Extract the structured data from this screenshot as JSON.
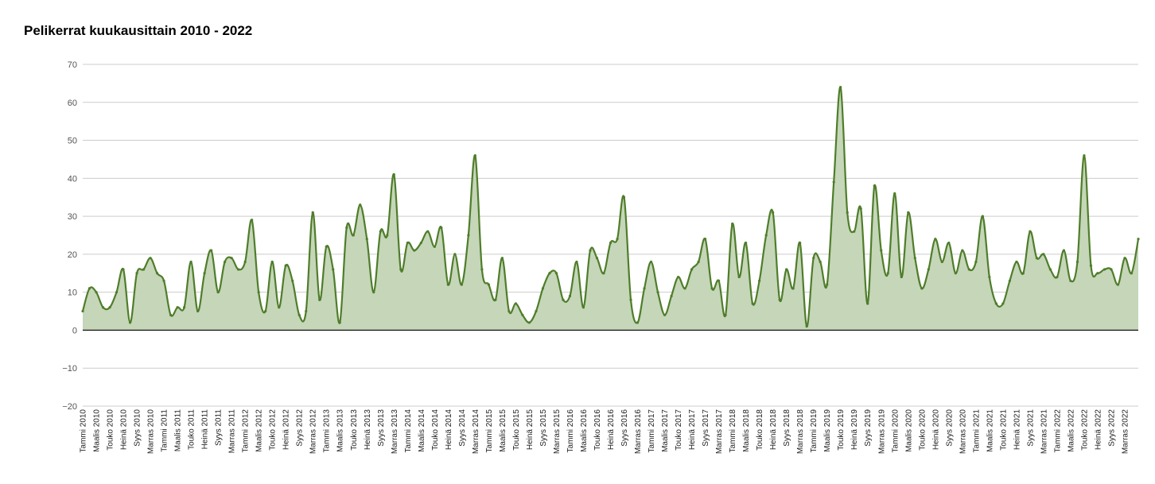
{
  "colors": {
    "line": "#4f7d2a",
    "fill": "#c5d6b9",
    "grid": "#cccccc",
    "zero": "#000000"
  },
  "chart_data": {
    "type": "area",
    "title": "Pelikerrat kuukausittain 2010 - 2022",
    "xlabel": "",
    "ylabel": "",
    "ylim": [
      -20,
      70
    ],
    "yticks": [
      70,
      60,
      50,
      40,
      30,
      20,
      10,
      0,
      -10,
      -20
    ],
    "grid": true,
    "legend": "none",
    "x_tick_labels": [
      "Tammi 2010",
      "Maalis 2010",
      "Touko 2010",
      "Heinä 2010",
      "Syys 2010",
      "Marras 2010",
      "Tammi 2011",
      "Maalis 2011",
      "Touko 2011",
      "Heinä 2011",
      "Syys 2011",
      "Marras 2011",
      "Tammi 2012",
      "Maalis 2012",
      "Touko 2012",
      "Heinä 2012",
      "Syys 2012",
      "Marras 2012",
      "Tammi 2013",
      "Maalis 2013",
      "Touko 2013",
      "Heinä 2013",
      "Syys 2013",
      "Marras 2013",
      "Tammi 2014",
      "Maalis 2014",
      "Touko 2014",
      "Heinä 2014",
      "Syys 2014",
      "Marras 2014",
      "Tammi 2015",
      "Maalis 2015",
      "Touko 2015",
      "Heinä 2015",
      "Syys 2015",
      "Marras 2015",
      "Tammi 2016",
      "Maalis 2016",
      "Touko 2016",
      "Heinä 2016",
      "Syys 2016",
      "Marras 2016",
      "Tammi 2017",
      "Maalis 2017",
      "Touko 2017",
      "Heinä 2017",
      "Syys 2017",
      "Marras 2017",
      "Tammi 2018",
      "Maalis 2018",
      "Touko 2018",
      "Heinä 2018",
      "Syys 2018",
      "Marras 2018",
      "Tammi 2019",
      "Maalis 2019",
      "Touko 2019",
      "Heinä 2019",
      "Syys 2019",
      "Marras 2019",
      "Tammi 2020",
      "Maalis 2020",
      "Touko 2020",
      "Heinä 2020",
      "Syys 2020",
      "Marras 2020",
      "Tammi 2021",
      "Maalis 2021",
      "Touko 2021",
      "Heinä 2021",
      "Syys 2021",
      "Marras 2021",
      "Tammi 2022",
      "Maalis 2022",
      "Touko 2022",
      "Heinä 2022",
      "Syys 2022",
      "Marras 2022"
    ],
    "values": [
      5,
      11,
      10,
      6,
      6,
      10,
      16,
      2,
      15,
      16,
      19,
      15,
      13,
      4,
      6,
      6,
      18,
      5,
      15,
      21,
      10,
      18,
      19,
      16,
      18,
      29,
      10,
      5,
      18,
      6,
      17,
      13,
      4,
      5,
      31,
      8,
      22,
      16,
      2,
      27,
      25,
      33,
      24,
      10,
      26,
      25,
      41,
      16,
      23,
      21,
      23,
      26,
      22,
      27,
      12,
      20,
      12,
      25,
      46,
      16,
      12,
      8,
      19,
      5,
      7,
      4,
      2,
      5,
      11,
      15,
      15,
      8,
      9,
      18,
      6,
      21,
      19,
      15,
      23,
      24,
      35,
      8,
      2,
      11,
      18,
      10,
      4,
      9,
      14,
      11,
      16,
      18,
      24,
      11,
      13,
      4,
      28,
      14,
      23,
      7,
      13,
      25,
      31,
      8,
      16,
      11,
      23,
      1,
      19,
      18,
      12,
      39,
      64,
      31,
      26,
      32,
      7,
      38,
      21,
      15,
      36,
      14,
      31,
      19,
      11,
      16,
      24,
      18,
      23,
      15,
      21,
      16,
      18,
      30,
      14,
      7,
      7,
      13,
      18,
      15,
      26,
      19,
      20,
      16,
      14,
      21,
      13,
      18,
      46,
      17,
      15,
      16,
      16,
      12,
      19,
      15,
      24
    ]
  }
}
